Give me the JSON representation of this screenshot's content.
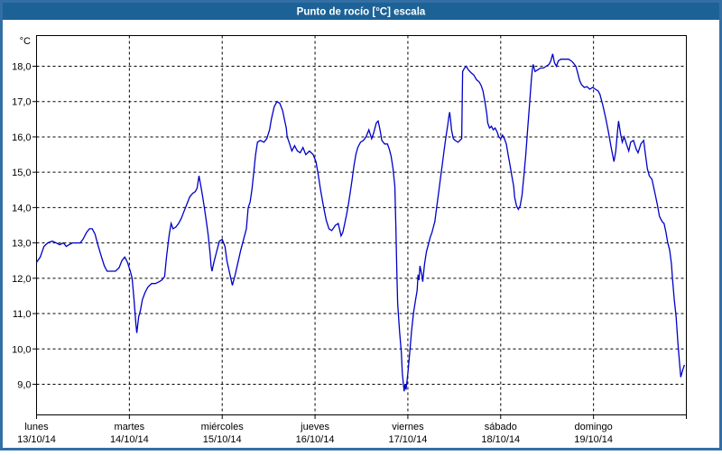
{
  "window": {
    "title": "Punto de rocío [°C] escala"
  },
  "colors": {
    "frame_border": "#336FA5",
    "title_bar": "#1C6296",
    "title_text": "#FFFFFF",
    "plot_background": "#FFFFFF",
    "grid": "#000000",
    "axis": "#000000",
    "series_line": "#0000C8"
  },
  "chart_data": {
    "type": "line",
    "title": "Punto de rocío [°C] escala",
    "xlabel": "",
    "ylabel": "°C",
    "grid": "dashed",
    "legend": "none",
    "y_axis": {
      "ticks": [
        {
          "value": 18,
          "label": "18,0"
        },
        {
          "value": 17,
          "label": "17,0"
        },
        {
          "value": 16,
          "label": "16,0"
        },
        {
          "value": 15,
          "label": "15,0"
        },
        {
          "value": 14,
          "label": "14,0"
        },
        {
          "value": 13,
          "label": "13,0"
        },
        {
          "value": 12,
          "label": "12,0"
        },
        {
          "value": 11,
          "label": "11,0"
        },
        {
          "value": 10,
          "label": "10,0"
        },
        {
          "value": 9,
          "label": "9,0"
        }
      ]
    },
    "x_axis": {
      "unit": "days (0 = lunes 13/10/14 00:00)",
      "range": [
        0,
        7
      ],
      "days": [
        {
          "name": "lunes",
          "date": "13/10/14"
        },
        {
          "name": "martes",
          "date": "14/10/14"
        },
        {
          "name": "miércoles",
          "date": "15/10/14"
        },
        {
          "name": "jueves",
          "date": "16/10/14"
        },
        {
          "name": "viernes",
          "date": "17/10/14"
        },
        {
          "name": "sábado",
          "date": "18/10/14"
        },
        {
          "name": "domingo",
          "date": "19/10/14"
        }
      ]
    },
    "series": [
      {
        "name": "Punto de rocío",
        "color": "#0000C8",
        "points_day_degC": [
          [
            0,
            12.45
          ],
          [
            0.04,
            12.6
          ],
          [
            0.08,
            12.9
          ],
          [
            0.12,
            13
          ],
          [
            0.17,
            13.05
          ],
          [
            0.21,
            13
          ],
          [
            0.25,
            12.95
          ],
          [
            0.29,
            13
          ],
          [
            0.32,
            12.9
          ],
          [
            0.35,
            12.95
          ],
          [
            0.39,
            13
          ],
          [
            0.47,
            13
          ],
          [
            0.5,
            13.1
          ],
          [
            0.54,
            13.3
          ],
          [
            0.57,
            13.4
          ],
          [
            0.6,
            13.4
          ],
          [
            0.63,
            13.25
          ],
          [
            0.66,
            12.95
          ],
          [
            0.7,
            12.6
          ],
          [
            0.73,
            12.35
          ],
          [
            0.76,
            12.2
          ],
          [
            0.81,
            12.2
          ],
          [
            0.85,
            12.2
          ],
          [
            0.89,
            12.3
          ],
          [
            0.92,
            12.5
          ],
          [
            0.95,
            12.6
          ],
          [
            0.98,
            12.45
          ],
          [
            1.01,
            12.2
          ],
          [
            1.03,
            12
          ],
          [
            1.05,
            11.4
          ],
          [
            1.07,
            10.7
          ],
          [
            1.08,
            10.45
          ],
          [
            1.1,
            10.9
          ],
          [
            1.12,
            11.1
          ],
          [
            1.14,
            11.4
          ],
          [
            1.17,
            11.6
          ],
          [
            1.2,
            11.75
          ],
          [
            1.24,
            11.85
          ],
          [
            1.28,
            11.85
          ],
          [
            1.32,
            11.9
          ],
          [
            1.35,
            11.95
          ],
          [
            1.38,
            12.05
          ],
          [
            1.4,
            12.6
          ],
          [
            1.42,
            13.05
          ],
          [
            1.43,
            13.25
          ],
          [
            1.45,
            13.55
          ],
          [
            1.47,
            13.4
          ],
          [
            1.5,
            13.45
          ],
          [
            1.53,
            13.55
          ],
          [
            1.56,
            13.7
          ],
          [
            1.59,
            13.9
          ],
          [
            1.62,
            14.1
          ],
          [
            1.65,
            14.3
          ],
          [
            1.68,
            14.4
          ],
          [
            1.71,
            14.45
          ],
          [
            1.73,
            14.55
          ],
          [
            1.75,
            14.9
          ],
          [
            1.77,
            14.6
          ],
          [
            1.79,
            14.3
          ],
          [
            1.81,
            13.95
          ],
          [
            1.83,
            13.6
          ],
          [
            1.85,
            13.2
          ],
          [
            1.87,
            12.7
          ],
          [
            1.88,
            12.35
          ],
          [
            1.89,
            12.2
          ],
          [
            1.91,
            12.45
          ],
          [
            1.94,
            12.75
          ],
          [
            1.97,
            13.05
          ],
          [
            2,
            13.1
          ],
          [
            2.03,
            12.9
          ],
          [
            2.05,
            12.5
          ],
          [
            2.08,
            12.15
          ],
          [
            2.11,
            11.8
          ],
          [
            2.14,
            12.1
          ],
          [
            2.17,
            12.45
          ],
          [
            2.2,
            12.8
          ],
          [
            2.23,
            13.1
          ],
          [
            2.26,
            13.4
          ],
          [
            2.28,
            14
          ],
          [
            2.3,
            14.15
          ],
          [
            2.32,
            14.5
          ],
          [
            2.34,
            15
          ],
          [
            2.36,
            15.5
          ],
          [
            2.38,
            15.85
          ],
          [
            2.41,
            15.9
          ],
          [
            2.45,
            15.85
          ],
          [
            2.48,
            15.95
          ],
          [
            2.51,
            16.2
          ],
          [
            2.53,
            16.5
          ],
          [
            2.56,
            16.85
          ],
          [
            2.59,
            17
          ],
          [
            2.62,
            16.95
          ],
          [
            2.65,
            16.75
          ],
          [
            2.67,
            16.5
          ],
          [
            2.69,
            16.25
          ],
          [
            2.7,
            16
          ],
          [
            2.72,
            15.85
          ],
          [
            2.75,
            15.6
          ],
          [
            2.78,
            15.75
          ],
          [
            2.81,
            15.6
          ],
          [
            2.84,
            15.55
          ],
          [
            2.87,
            15.7
          ],
          [
            2.9,
            15.5
          ],
          [
            2.94,
            15.6
          ],
          [
            2.98,
            15.5
          ],
          [
            3.01,
            15.3
          ],
          [
            3.03,
            15
          ],
          [
            3.06,
            14.5
          ],
          [
            3.09,
            14.05
          ],
          [
            3.12,
            13.65
          ],
          [
            3.15,
            13.4
          ],
          [
            3.18,
            13.35
          ],
          [
            3.22,
            13.5
          ],
          [
            3.25,
            13.55
          ],
          [
            3.28,
            13.2
          ],
          [
            3.3,
            13.3
          ],
          [
            3.32,
            13.55
          ],
          [
            3.34,
            13.8
          ],
          [
            3.36,
            14.1
          ],
          [
            3.38,
            14.45
          ],
          [
            3.4,
            14.8
          ],
          [
            3.42,
            15.2
          ],
          [
            3.44,
            15.5
          ],
          [
            3.46,
            15.7
          ],
          [
            3.49,
            15.85
          ],
          [
            3.52,
            15.9
          ],
          [
            3.55,
            16
          ],
          [
            3.58,
            16.2
          ],
          [
            3.61,
            15.95
          ],
          [
            3.63,
            16.1
          ],
          [
            3.66,
            16.4
          ],
          [
            3.68,
            16.45
          ],
          [
            3.7,
            16.2
          ],
          [
            3.72,
            15.9
          ],
          [
            3.75,
            15.8
          ],
          [
            3.78,
            15.8
          ],
          [
            3.8,
            15.65
          ],
          [
            3.82,
            15.45
          ],
          [
            3.84,
            15.1
          ],
          [
            3.86,
            14.6
          ],
          [
            3.87,
            13.5
          ],
          [
            3.88,
            12.3
          ],
          [
            3.89,
            11.3
          ],
          [
            3.91,
            10.5
          ],
          [
            3.93,
            9.9
          ],
          [
            3.94,
            9.3
          ],
          [
            3.96,
            8.8
          ],
          [
            3.97,
            9
          ],
          [
            3.98,
            8.85
          ],
          [
            4,
            9.3
          ],
          [
            4.02,
            9.9
          ],
          [
            4.04,
            10.5
          ],
          [
            4.06,
            11
          ],
          [
            4.08,
            11.35
          ],
          [
            4.1,
            11.65
          ],
          [
            4.11,
            12.1
          ],
          [
            4.12,
            11.95
          ],
          [
            4.13,
            12.35
          ],
          [
            4.15,
            12.1
          ],
          [
            4.16,
            11.9
          ],
          [
            4.18,
            12.4
          ],
          [
            4.2,
            12.75
          ],
          [
            4.22,
            12.95
          ],
          [
            4.24,
            13.15
          ],
          [
            4.26,
            13.3
          ],
          [
            4.27,
            13.4
          ],
          [
            4.29,
            13.6
          ],
          [
            4.31,
            14
          ],
          [
            4.33,
            14.4
          ],
          [
            4.35,
            14.8
          ],
          [
            4.37,
            15.2
          ],
          [
            4.39,
            15.6
          ],
          [
            4.41,
            16
          ],
          [
            4.43,
            16.35
          ],
          [
            4.44,
            16.55
          ],
          [
            4.45,
            16.7
          ],
          [
            4.46,
            16.5
          ],
          [
            4.47,
            16.2
          ],
          [
            4.49,
            15.95
          ],
          [
            4.51,
            15.9
          ],
          [
            4.54,
            15.85
          ],
          [
            4.56,
            15.9
          ],
          [
            4.58,
            15.95
          ],
          [
            4.59,
            17.85
          ],
          [
            4.61,
            17.95
          ],
          [
            4.63,
            18
          ],
          [
            4.65,
            17.9
          ],
          [
            4.68,
            17.82
          ],
          [
            4.71,
            17.75
          ],
          [
            4.74,
            17.62
          ],
          [
            4.77,
            17.55
          ],
          [
            4.79,
            17.45
          ],
          [
            4.81,
            17.3
          ],
          [
            4.83,
            17
          ],
          [
            4.85,
            16.65
          ],
          [
            4.86,
            16.4
          ],
          [
            4.88,
            16.25
          ],
          [
            4.9,
            16.3
          ],
          [
            4.92,
            16.2
          ],
          [
            4.94,
            16.25
          ],
          [
            4.96,
            16.15
          ],
          [
            4.98,
            16
          ],
          [
            5,
            15.95
          ],
          [
            5.02,
            16.05
          ],
          [
            5.04,
            15.95
          ],
          [
            5.06,
            15.8
          ],
          [
            5.08,
            15.5
          ],
          [
            5.1,
            15.2
          ],
          [
            5.12,
            14.9
          ],
          [
            5.14,
            14.6
          ],
          [
            5.15,
            14.3
          ],
          [
            5.17,
            14.05
          ],
          [
            5.19,
            13.95
          ],
          [
            5.21,
            14.05
          ],
          [
            5.23,
            14.35
          ],
          [
            5.25,
            14.9
          ],
          [
            5.27,
            15.5
          ],
          [
            5.29,
            16.2
          ],
          [
            5.31,
            16.9
          ],
          [
            5.33,
            17.6
          ],
          [
            5.34,
            17.9
          ],
          [
            5.35,
            18.05
          ],
          [
            5.37,
            17.85
          ],
          [
            5.4,
            17.9
          ],
          [
            5.43,
            17.95
          ],
          [
            5.46,
            17.95
          ],
          [
            5.49,
            18
          ],
          [
            5.52,
            18.05
          ],
          [
            5.54,
            18.15
          ],
          [
            5.56,
            18.35
          ],
          [
            5.58,
            18.1
          ],
          [
            5.6,
            18
          ],
          [
            5.62,
            18.15
          ],
          [
            5.65,
            18.2
          ],
          [
            5.69,
            18.2
          ],
          [
            5.73,
            18.2
          ],
          [
            5.76,
            18.15
          ],
          [
            5.78,
            18.1
          ],
          [
            5.81,
            18
          ],
          [
            5.83,
            17.8
          ],
          [
            5.85,
            17.6
          ],
          [
            5.87,
            17.48
          ],
          [
            5.9,
            17.4
          ],
          [
            5.93,
            17.42
          ],
          [
            5.96,
            17.35
          ],
          [
            5.99,
            17.4
          ],
          [
            6.02,
            17.35
          ],
          [
            6.05,
            17.3
          ],
          [
            6.07,
            17.2
          ],
          [
            6.1,
            16.9
          ],
          [
            6.13,
            16.55
          ],
          [
            6.16,
            16.15
          ],
          [
            6.19,
            15.7
          ],
          [
            6.22,
            15.3
          ],
          [
            6.24,
            15.6
          ],
          [
            6.26,
            16.2
          ],
          [
            6.27,
            16.45
          ],
          [
            6.29,
            16.1
          ],
          [
            6.31,
            15.85
          ],
          [
            6.33,
            16
          ],
          [
            6.36,
            15.75
          ],
          [
            6.38,
            15.6
          ],
          [
            6.4,
            15.85
          ],
          [
            6.43,
            15.9
          ],
          [
            6.46,
            15.65
          ],
          [
            6.48,
            15.55
          ],
          [
            6.51,
            15.8
          ],
          [
            6.54,
            15.9
          ],
          [
            6.56,
            15.5
          ],
          [
            6.58,
            15.1
          ],
          [
            6.6,
            14.9
          ],
          [
            6.63,
            14.8
          ],
          [
            6.65,
            14.55
          ],
          [
            6.67,
            14.3
          ],
          [
            6.69,
            14.05
          ],
          [
            6.71,
            13.75
          ],
          [
            6.74,
            13.6
          ],
          [
            6.76,
            13.55
          ],
          [
            6.78,
            13.3
          ],
          [
            6.8,
            13
          ],
          [
            6.82,
            12.8
          ],
          [
            6.84,
            12.4
          ],
          [
            6.85,
            12
          ],
          [
            6.87,
            11.4
          ],
          [
            6.89,
            10.9
          ],
          [
            6.91,
            10.15
          ],
          [
            6.93,
            9.5
          ],
          [
            6.94,
            9.2
          ],
          [
            6.96,
            9.4
          ],
          [
            6.98,
            9.55
          ]
        ]
      }
    ]
  }
}
